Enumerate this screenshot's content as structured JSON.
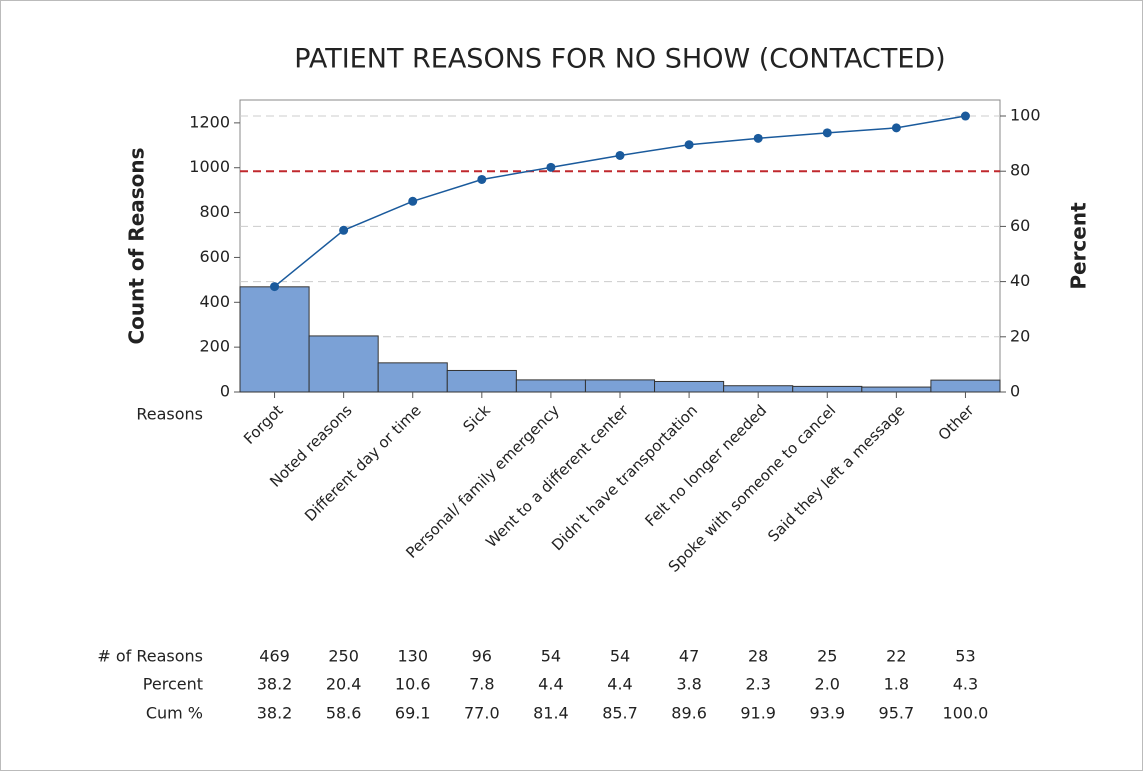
{
  "chart_data": {
    "type": "pareto",
    "title": "PATIENT REASONS FOR NO SHOW (CONTACTED)",
    "y_label": "Count of Reasons",
    "y2_label": "Percent",
    "x_label": "Reasons",
    "categories": [
      "Forgot",
      "Noted reasons",
      "Different day or time",
      "Sick",
      "Personal/ family emergency",
      "Went to a different center",
      "Didn't have transportation",
      "Felt no longer needed",
      "Spoke with someone to cancel",
      "Said they left a message",
      "Other"
    ],
    "series": [
      {
        "name": "# of Reasons",
        "color": "#7ba1d6",
        "values": [
          469,
          250,
          130,
          96,
          54,
          54,
          47,
          28,
          25,
          22,
          53
        ],
        "value_labels": [
          "469",
          "250",
          "130",
          "96",
          "54",
          "54",
          "47",
          "28",
          "25",
          "22",
          "53"
        ]
      },
      {
        "name": "Percent",
        "values": [
          38.2,
          20.4,
          10.6,
          7.8,
          4.4,
          4.4,
          3.8,
          2.3,
          2.0,
          1.8,
          4.3
        ],
        "value_labels": [
          "38.2",
          "20.4",
          "10.6",
          "7.8",
          "4.4",
          "4.4",
          "3.8",
          "2.3",
          "2.0",
          "1.8",
          "4.3"
        ]
      },
      {
        "name": "Cum %",
        "color": "#1a5a9c",
        "axis": "y2",
        "values": [
          38.2,
          58.6,
          69.1,
          77.0,
          81.4,
          85.7,
          89.6,
          91.9,
          93.9,
          95.7,
          100.0
        ],
        "value_labels": [
          "38.2",
          "58.6",
          "69.1",
          "77.0",
          "81.4",
          "85.7",
          "89.6",
          "91.9",
          "93.9",
          "95.7",
          "100.0"
        ]
      }
    ],
    "ylim": [
      0,
      1302
    ],
    "yticks": [
      0,
      200,
      400,
      600,
      800,
      1000,
      1200
    ],
    "y2lim": [
      0,
      105.8
    ],
    "y2ticks": [
      0,
      20,
      40,
      60,
      80,
      100
    ],
    "reference_line": {
      "value": 80,
      "axis": "y2",
      "color": "#c0282d"
    },
    "grid": true
  }
}
